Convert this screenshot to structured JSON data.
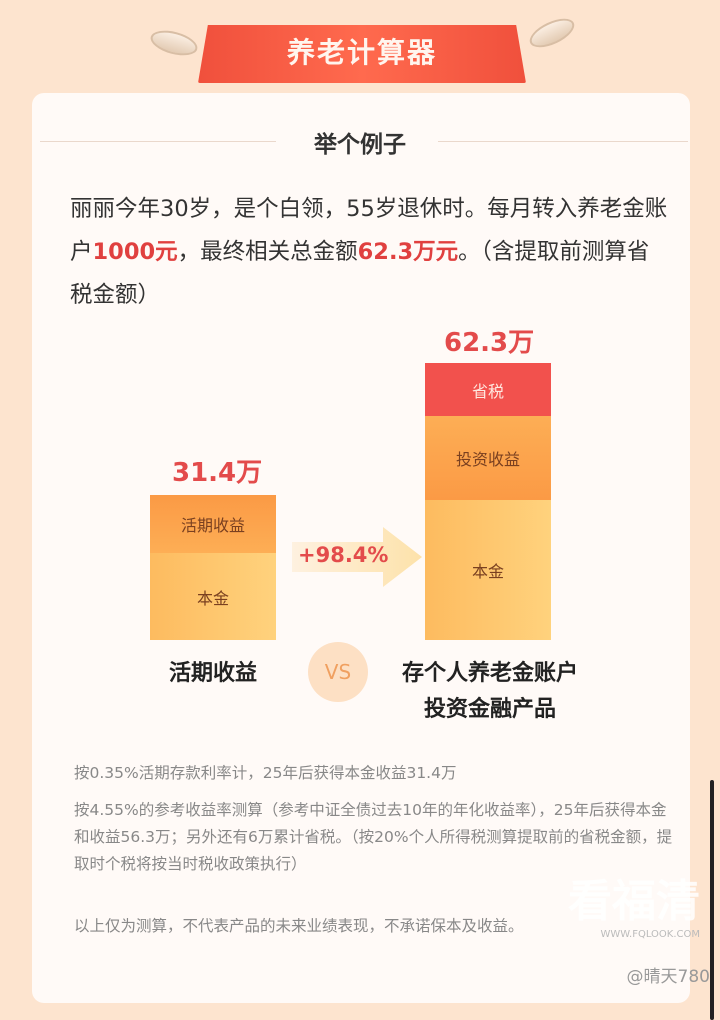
{
  "header": {
    "title": "养老计算器"
  },
  "section": {
    "title": "举个例子"
  },
  "intro": {
    "part1": "丽丽今年30岁，是个白领，55岁退休时。每月转入养老金账户",
    "amount": "1000元",
    "part2": "，最终相关总金额",
    "total": "62.3万元",
    "part3": "。（含提取前测算省税金额）"
  },
  "comparison": {
    "left": {
      "total": "31.4万",
      "segments": [
        "活期收益",
        "本金"
      ],
      "label": "活期收益"
    },
    "arrow": {
      "text": "+98.4%"
    },
    "vs": "VS",
    "right": {
      "total": "62.3万",
      "segments": [
        "省税",
        "投资收益",
        "本金"
      ],
      "label_line1": "存个人养老金账户",
      "label_line2": "投资金融产品"
    },
    "colors": {
      "tax": "#f2514d",
      "income": "#fb9a45",
      "principal": "#fdbb5f"
    }
  },
  "notes": [
    "按0.35%活期存款利率计，25年后获得本金收益31.4万",
    "按4.55%的参考收益率测算（参考中证全债过去10年的年化收益率），25年后获得本金和收益56.3万；另外还有6万累计省税。（按20%个人所得税测算提取前的省税金额，提取时个税将按当时税收政策执行）",
    "以上仅为测算，不代表产品的未来业绩表现，不承诺保本及收益。"
  ],
  "watermark": {
    "text": "看福清",
    "url": "WWW.FQLOOK.COM"
  },
  "user": "@晴天780"
}
